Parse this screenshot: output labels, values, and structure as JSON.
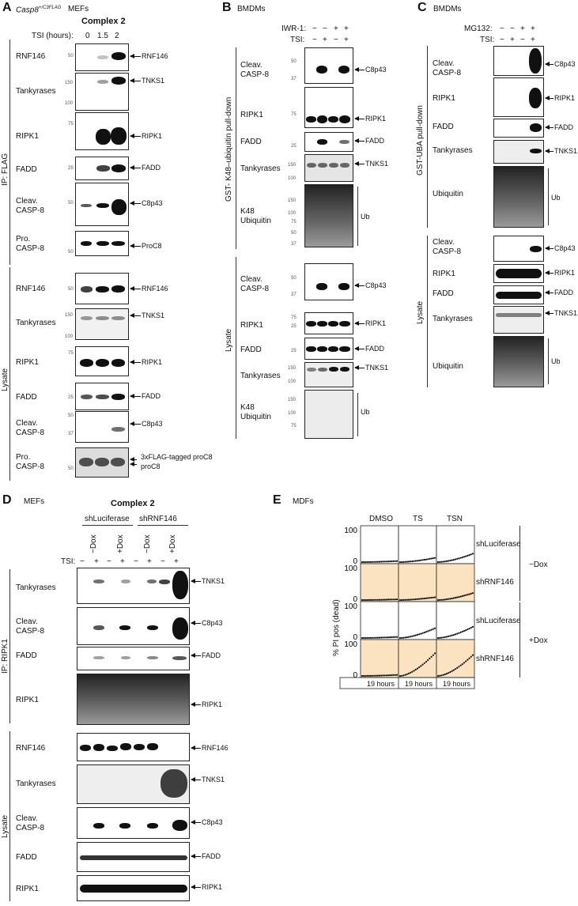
{
  "panels": {
    "A": {
      "letter": "A",
      "strain": "Casp8",
      "strain_sup": "+/C3FLAG",
      "cell": "MEFs",
      "title": "Complex 2",
      "tsi_label": "TSI (hours):",
      "tsi_values": [
        "0",
        "1.5",
        "2"
      ],
      "ip_label": "IP: FLAG",
      "lysate_label": "Lysate",
      "rows": [
        "RNF146",
        "Tankyrases",
        "RIPK1",
        "FADD",
        "Cleav. CASP-8",
        "Pro. CASP-8",
        "RNF146",
        "Tankyrases",
        "RIPK1",
        "FADD",
        "Cleav. CASP-8",
        "Pro. CASP-8"
      ],
      "bands": [
        "RNF146",
        "TNKS1",
        "RIPK1",
        "FADD",
        "C8p43",
        "ProC8",
        "RNF146",
        "TNKS1",
        "RIPK1",
        "FADD",
        "C8p43",
        "3xFLAG-tagged proC8",
        "proC8"
      ],
      "mw": [
        "50",
        "150",
        "100",
        "75",
        "25",
        "50",
        "50",
        "50",
        "150",
        "100",
        "75",
        "25",
        "50",
        "37",
        "50"
      ]
    },
    "B": {
      "letter": "B",
      "cell": "BMDMs",
      "row1": "IWR-1:",
      "row2": "TSI:",
      "iwr": [
        "−",
        "−",
        "+",
        "+"
      ],
      "tsi": [
        "−",
        "+",
        "−",
        "+"
      ],
      "pulldown": "GST- K48–ubiquitin pull-down",
      "lysate_label": "Lysate",
      "rows": [
        "Cleav. CASP-8",
        "RIPK1",
        "FADD",
        "Tankyrases",
        "K48 Ubiquitin",
        "Cleav. CASP-8",
        "RIPK1",
        "FADD",
        "Tankyrases",
        "K48 Ubiquitin"
      ],
      "bands": [
        "C8p43",
        "RIPK1",
        "FADD",
        "TNKS1",
        "Ub",
        "C8p43",
        "RIPK1",
        "FADD",
        "TNKS1",
        "Ub"
      ],
      "mw": [
        "50",
        "37",
        "75",
        "25",
        "150",
        "100",
        "150",
        "100",
        "75",
        "50",
        "37",
        "25",
        "50",
        "37",
        "75",
        "25",
        "150",
        "100",
        "150",
        "100",
        "75"
      ]
    },
    "C": {
      "letter": "C",
      "cell": "BMDMs",
      "row1": "MG132:",
      "row2": "TSI:",
      "mg": [
        "−",
        "−",
        "+",
        "+"
      ],
      "tsi": [
        "−",
        "+",
        "−",
        "+"
      ],
      "pulldown": "GST-UBA pull-down",
      "lysate_label": "Lysate",
      "rows": [
        "Cleav. CASP-8",
        "RIPK1",
        "FADD",
        "Tankyrases",
        "Ubiquitin",
        "Cleav. CASP-8",
        "RIPK1",
        "FADD",
        "Tankyrases",
        "Ubiquitin"
      ],
      "bands": [
        "C8p43",
        "RIPK1",
        "FADD",
        "TNKS1",
        "Ub",
        "C8p43",
        "RIPK1",
        "FADD",
        "TNKS1",
        "Ub"
      ]
    },
    "D": {
      "letter": "D",
      "cell": "MEFs",
      "title": "Complex 2",
      "groups": [
        "shLuciferase",
        "shRNF146"
      ],
      "dox": [
        "−Dox",
        "+Dox",
        "−Dox",
        "+Dox"
      ],
      "tsi_label": "TSI:",
      "tsi": [
        "−",
        "+",
        "−",
        "+",
        "−",
        "+",
        "−",
        "+"
      ],
      "ip_label": "IP: RIPK1",
      "lysate_label": "Lysate",
      "rows": [
        "Tankyrases",
        "Cleav. CASP-8",
        "FADD",
        "RIPK1",
        "RNF146",
        "Tankyrases",
        "Cleav. CASP-8",
        "FADD",
        "RIPK1"
      ],
      "bands": [
        "TNKS1",
        "C8p43",
        "FADD",
        "RIPK1",
        "RNF146",
        "TNKS1",
        "C8p43",
        "FADD",
        "RIPK1"
      ]
    },
    "E": {
      "letter": "E",
      "cell": "MDFs",
      "cols": [
        "DMSO",
        "TS",
        "TSN"
      ],
      "rows": [
        "shLuciferase",
        "shRNF146",
        "shLuciferase",
        "shRNF146"
      ],
      "dox": [
        "−Dox",
        "+Dox"
      ],
      "ylabel": "% PI pos (dead)",
      "y_max": "100",
      "y_min": "0",
      "xlabel": "19 hours"
    }
  },
  "chart_data": {
    "type": "line",
    "title": "",
    "ylabel": "% PI pos (dead)",
    "xlabel": "19 hours",
    "ylim": [
      0,
      100
    ],
    "x": [
      0,
      19
    ],
    "series": [
      {
        "condition": "shLuciferase −Dox",
        "DMSO": [
          0,
          3
        ],
        "TS": [
          0,
          12
        ],
        "TSN": [
          0,
          24
        ]
      },
      {
        "condition": "shRNF146 −Dox",
        "DMSO": [
          0,
          2
        ],
        "TS": [
          0,
          8
        ],
        "TSN": [
          0,
          20
        ]
      },
      {
        "condition": "shLuciferase +Dox",
        "DMSO": [
          0,
          3
        ],
        "TS": [
          0,
          28
        ],
        "TSN": [
          0,
          32
        ]
      },
      {
        "condition": "shRNF146 +Dox",
        "DMSO": [
          0,
          3
        ],
        "TS": [
          0,
          65
        ],
        "TSN": [
          0,
          60
        ]
      }
    ]
  }
}
